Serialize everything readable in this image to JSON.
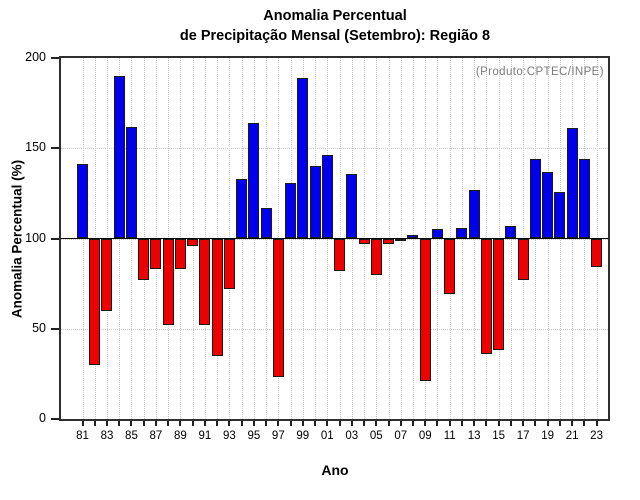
{
  "chart_data": {
    "type": "bar",
    "title": "Anomalia Percentual",
    "subtitle": "de Precipitação Mensal (Setembro): Região 8",
    "annotation": "(Produto:CPTEC/INPE)",
    "xlabel": "Ano",
    "ylabel": "Anomalia Percentual (%)",
    "ylim": [
      0,
      200
    ],
    "yticks": [
      0,
      50,
      100,
      150,
      200
    ],
    "baseline": 100,
    "grid": "dotted, vertical at every year, horizontal at 50/100/150",
    "legend": "none",
    "categories": [
      "81",
      "82",
      "83",
      "84",
      "85",
      "86",
      "87",
      "88",
      "89",
      "90",
      "91",
      "92",
      "93",
      "94",
      "95",
      "96",
      "97",
      "98",
      "99",
      "00",
      "01",
      "02",
      "03",
      "04",
      "05",
      "06",
      "07",
      "08",
      "09",
      "10",
      "11",
      "12",
      "13",
      "14",
      "15",
      "16",
      "17",
      "18",
      "19",
      "20",
      "21",
      "22",
      "23"
    ],
    "values": [
      141,
      30,
      60,
      190,
      162,
      77,
      83,
      52,
      83,
      96,
      52,
      35,
      72,
      133,
      164,
      117,
      23,
      131,
      189,
      140,
      146,
      82,
      136,
      97,
      80,
      97,
      100,
      102,
      21,
      105,
      69,
      106,
      127,
      36,
      38,
      107,
      77,
      144,
      137,
      126,
      161,
      144,
      84
    ],
    "xtick_labels_shown": [
      "81",
      "83",
      "85",
      "87",
      "89",
      "91",
      "93",
      "95",
      "97",
      "99",
      "01",
      "03",
      "05",
      "07",
      "09",
      "11",
      "13",
      "15",
      "17",
      "19",
      "21",
      "23"
    ],
    "colors": {
      "bar_above_baseline": "#0000ee",
      "bar_below_baseline": "#ee0000",
      "bar_border": "#1a1a1a",
      "gridline": "#c9c9c9",
      "annotation_text": "#7c7c7c",
      "axis": "#2f2f2f"
    }
  }
}
